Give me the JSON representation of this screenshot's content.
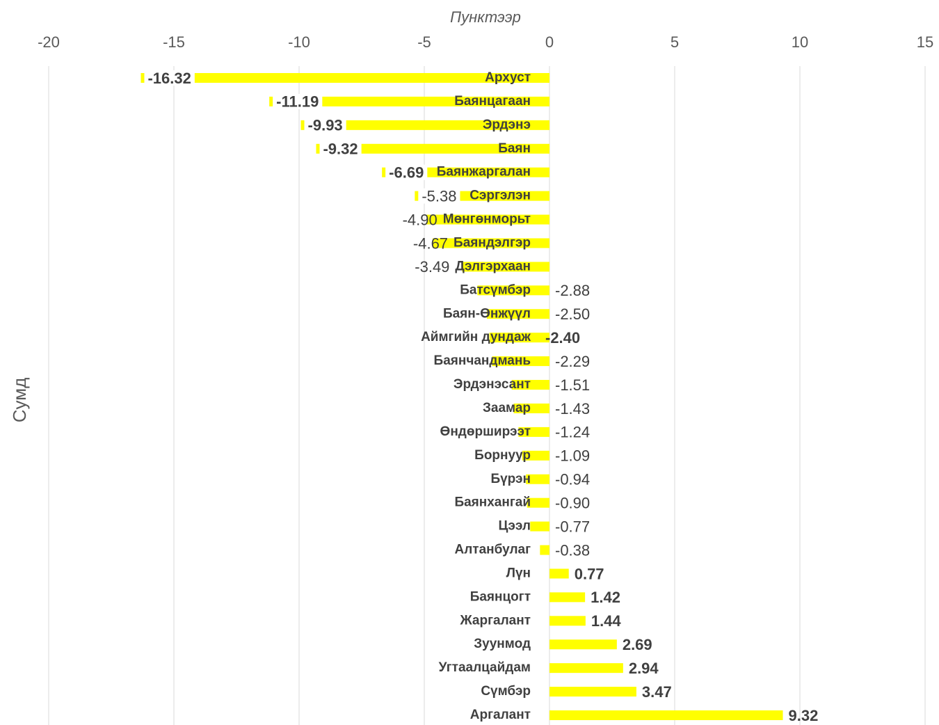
{
  "chart_data": {
    "type": "bar",
    "orientation": "horizontal",
    "title": "Пунктээр",
    "y_label": "Сумд",
    "categories": [
      "Архуст",
      "Баянцагаан",
      "Эрдэнэ",
      "Баян",
      "Баянжаргалан",
      "Сэргэлэн",
      "Мөнгөнморьт",
      "Баяндэлгэр",
      "Дэлгэрхаан",
      "Батсүмбэр",
      "Баян-Өнжүүл",
      "Аймгийн дундаж",
      "Баянчандмань",
      "Эрдэнэсант",
      "Заамар",
      "Өндөрширээт",
      "Борнуур",
      "Бүрэн",
      "Баянхангай",
      "Цээл",
      "Алтанбулаг",
      "Лүн",
      "Баянцогт",
      "Жаргалант",
      "Зуунмод",
      "Угтаалцайдам",
      "Сүмбэр",
      "Аргалант"
    ],
    "values": [
      -16.32,
      -11.19,
      -9.93,
      -9.32,
      -6.69,
      -5.38,
      -4.9,
      -4.67,
      -3.49,
      -2.88,
      -2.5,
      -2.4,
      -2.29,
      -1.51,
      -1.43,
      -1.24,
      -1.09,
      -0.94,
      -0.9,
      -0.77,
      -0.38,
      0.77,
      1.42,
      1.44,
      2.69,
      2.94,
      3.47,
      9.32
    ],
    "value_labels": [
      "-16.32",
      "-11.19",
      "-9.93",
      "-9.32",
      "-6.69",
      "-5.38",
      "-4.90",
      "-4.67",
      "-3.49",
      "-2.88",
      "-2.50",
      "-2.40",
      "-2.29",
      "-1.51",
      "-1.43",
      "-1.24",
      "-1.09",
      "-0.94",
      "-0.90",
      "-0.77",
      "-0.38",
      "0.77",
      "1.42",
      "1.44",
      "2.69",
      "2.94",
      "3.47",
      "9.32"
    ],
    "color": "#ffff00",
    "xlim": [
      -20,
      15
    ],
    "xticks": [
      -20,
      -15,
      -10,
      -5,
      0,
      5,
      10,
      15
    ],
    "grid": true
  }
}
